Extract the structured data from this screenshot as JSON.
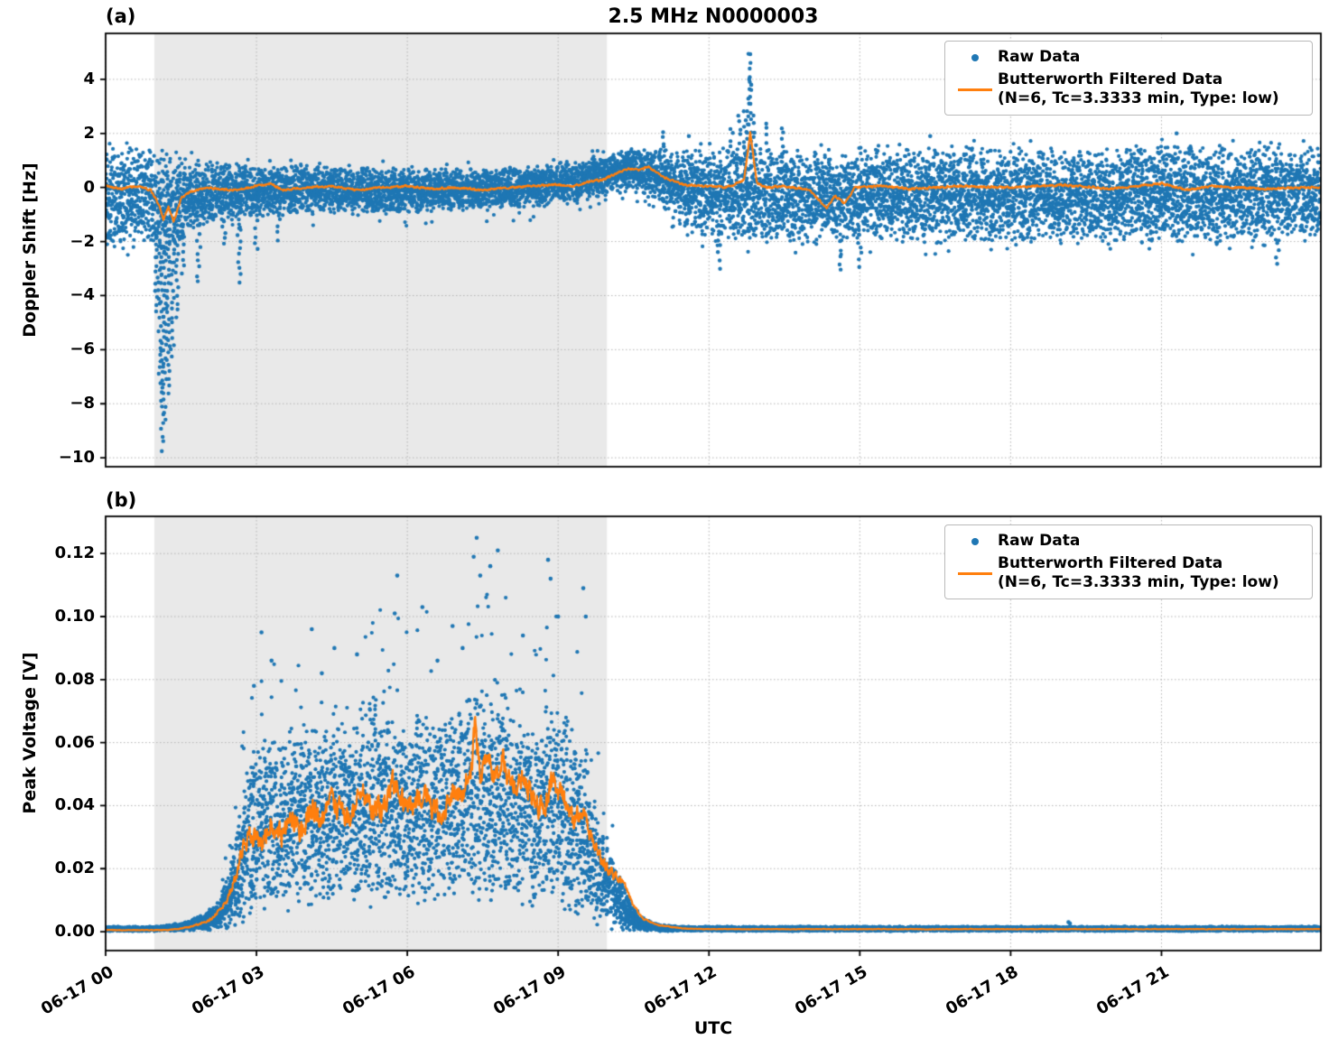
{
  "title": "2.5 MHz N0000003",
  "xlabel": "UTC",
  "legend": {
    "raw_label": "Raw Data",
    "filtered_label_line1": "Butterworth Filtered Data",
    "filtered_label_line2": "(N=6, Tc=3.3333 min, Type: low)"
  },
  "colors": {
    "raw": "#1f77b4",
    "filtered": "#ff7f0e",
    "shading": "#e9e9e9",
    "grid": "#b5b5b5",
    "spine": "#000000",
    "legend_edge": "#b9b9b9"
  },
  "chart_data": [
    {
      "id": "a",
      "panel_label": "(a)",
      "type": "scatter",
      "title": "2.5 MHz N0000003",
      "xlabel": "",
      "ylabel": "Doppler Shift [Hz]",
      "legend_entries": [
        "Raw Data",
        "Butterworth Filtered Data (N=6, Tc=3.3333 min, Type: low)"
      ],
      "legend_position": "upper right",
      "grid": true,
      "xlim_hours": [
        0,
        24.17
      ],
      "ylim": [
        -10.33,
        5.7
      ],
      "shaded_hours": [
        0.97,
        9.97
      ],
      "xticks": [
        {
          "hour": 0,
          "label": "06-17 00"
        },
        {
          "hour": 3,
          "label": "06-17 03"
        },
        {
          "hour": 6,
          "label": "06-17 06"
        },
        {
          "hour": 9,
          "label": "06-17 09"
        },
        {
          "hour": 12,
          "label": "06-17 12"
        },
        {
          "hour": 15,
          "label": "06-17 15"
        },
        {
          "hour": 18,
          "label": "06-17 18"
        },
        {
          "hour": 21,
          "label": "06-17 21"
        }
      ],
      "show_x_tick_labels": false,
      "yticks": [
        {
          "value": 4,
          "label": "4"
        },
        {
          "value": 2,
          "label": "2"
        },
        {
          "value": 0,
          "label": "0"
        },
        {
          "value": -2,
          "label": "−2"
        },
        {
          "value": -4,
          "label": "−4"
        },
        {
          "value": -6,
          "label": "−6"
        },
        {
          "value": -8,
          "label": "−8"
        },
        {
          "value": -10,
          "label": "−10"
        }
      ],
      "raw_band_envelope": [
        [
          0,
          1.7,
          -2.3
        ],
        [
          0.4,
          1.6,
          -2.1
        ],
        [
          0.8,
          1.5,
          -1.9
        ],
        [
          1.0,
          1.3,
          -2.3
        ],
        [
          1.2,
          1.2,
          -2.6
        ],
        [
          1.4,
          1.1,
          -2.2
        ],
        [
          1.6,
          1.0,
          -1.7
        ],
        [
          1.9,
          0.9,
          -1.4
        ],
        [
          2.2,
          0.85,
          -1.2
        ],
        [
          2.6,
          0.8,
          -1.15
        ],
        [
          3.0,
          0.75,
          -1.05
        ],
        [
          3.5,
          0.8,
          -1.0
        ],
        [
          4.0,
          0.85,
          -1.0
        ],
        [
          4.5,
          0.75,
          -0.95
        ],
        [
          5.0,
          0.7,
          -0.9
        ],
        [
          5.5,
          0.75,
          -0.95
        ],
        [
          6.0,
          0.7,
          -0.9
        ],
        [
          6.5,
          0.65,
          -0.85
        ],
        [
          7.0,
          0.7,
          -0.8
        ],
        [
          7.5,
          0.65,
          -0.8
        ],
        [
          8.0,
          0.7,
          -0.75
        ],
        [
          8.5,
          0.75,
          -0.7
        ],
        [
          9.0,
          0.85,
          -0.6
        ],
        [
          9.4,
          0.95,
          -0.5
        ],
        [
          9.7,
          1.05,
          -0.35
        ],
        [
          10.0,
          1.2,
          -0.25
        ],
        [
          10.3,
          1.45,
          -0.1
        ],
        [
          10.6,
          1.55,
          -0.15
        ],
        [
          10.9,
          1.45,
          -0.4
        ],
        [
          11.2,
          1.3,
          -0.9
        ],
        [
          11.5,
          1.25,
          -1.4
        ],
        [
          11.9,
          1.3,
          -1.8
        ],
        [
          12.4,
          1.35,
          -1.9
        ],
        [
          13.0,
          1.4,
          -1.95
        ],
        [
          14.0,
          1.35,
          -2.0
        ],
        [
          15.0,
          1.3,
          -1.9
        ],
        [
          16.0,
          1.35,
          -1.95
        ],
        [
          17.0,
          1.4,
          -1.9
        ],
        [
          18.0,
          1.35,
          -2.0
        ],
        [
          19.0,
          1.4,
          -1.9
        ],
        [
          20.0,
          1.35,
          -1.95
        ],
        [
          21.0,
          1.45,
          -1.9
        ],
        [
          22.0,
          1.4,
          -2.0
        ],
        [
          23.0,
          1.45,
          -1.95
        ],
        [
          24.17,
          1.5,
          -1.9
        ]
      ],
      "raw_outlier_streaks": [
        [
          1.02,
          -1.6,
          -4.6
        ],
        [
          1.08,
          -2.0,
          -7.2
        ],
        [
          1.13,
          -2.2,
          -9.7
        ],
        [
          1.18,
          -2.0,
          -8.6
        ],
        [
          1.25,
          -1.8,
          -7.6
        ],
        [
          1.33,
          -2.0,
          -6.3
        ],
        [
          1.42,
          -1.6,
          -4.8
        ],
        [
          1.55,
          -1.4,
          -3.2
        ],
        [
          1.85,
          -1.4,
          -3.5
        ],
        [
          2.35,
          -1.2,
          -2.1
        ],
        [
          2.65,
          -1.2,
          -3.5
        ],
        [
          3.0,
          -1.0,
          -2.3
        ],
        [
          3.45,
          -1.0,
          -1.9
        ],
        [
          11.1,
          1.5,
          2.0
        ],
        [
          12.2,
          -1.9,
          -3.0
        ],
        [
          12.45,
          1.3,
          2.2
        ],
        [
          12.6,
          1.4,
          2.7
        ],
        [
          12.72,
          1.2,
          2.8
        ],
        [
          12.78,
          1.3,
          3.6
        ],
        [
          12.82,
          1.5,
          4.93
        ],
        [
          12.9,
          1.3,
          2.6
        ],
        [
          13.15,
          1.4,
          2.4
        ],
        [
          13.45,
          1.3,
          2.2
        ],
        [
          14.6,
          -2.0,
          -3.1
        ],
        [
          15.0,
          -2.0,
          -2.9
        ],
        [
          23.3,
          -2.0,
          -2.8
        ]
      ],
      "raw_outlier_points": [
        [
          12.82,
          4.93
        ],
        [
          12.8,
          4.0
        ],
        [
          12.84,
          3.8
        ],
        [
          11.6,
          1.9
        ],
        [
          16.4,
          1.9
        ],
        [
          21.3,
          2.0
        ]
      ],
      "filtered_line": [
        [
          0,
          0.05
        ],
        [
          0.3,
          -0.05
        ],
        [
          0.6,
          0.05
        ],
        [
          0.9,
          -0.1
        ],
        [
          1.05,
          -0.6
        ],
        [
          1.15,
          -1.2
        ],
        [
          1.25,
          -0.7
        ],
        [
          1.35,
          -1.3
        ],
        [
          1.5,
          -0.4
        ],
        [
          1.7,
          -0.15
        ],
        [
          2,
          0
        ],
        [
          2.5,
          -0.1
        ],
        [
          3,
          0.05
        ],
        [
          3.3,
          0.15
        ],
        [
          3.5,
          -0.1
        ],
        [
          4,
          0
        ],
        [
          4.5,
          0.05
        ],
        [
          5,
          -0.1
        ],
        [
          5.5,
          0
        ],
        [
          6,
          0.05
        ],
        [
          6.5,
          -0.05
        ],
        [
          7,
          0
        ],
        [
          7.5,
          -0.1
        ],
        [
          8,
          0
        ],
        [
          8.5,
          0.05
        ],
        [
          9,
          0.1
        ],
        [
          9.3,
          0.05
        ],
        [
          9.6,
          0.2
        ],
        [
          9.9,
          0.3
        ],
        [
          10.2,
          0.55
        ],
        [
          10.4,
          0.7
        ],
        [
          10.6,
          0.65
        ],
        [
          10.8,
          0.75
        ],
        [
          11.0,
          0.5
        ],
        [
          11.2,
          0.3
        ],
        [
          11.5,
          0.1
        ],
        [
          12,
          0.05
        ],
        [
          12.3,
          0
        ],
        [
          12.5,
          0.1
        ],
        [
          12.7,
          0.3
        ],
        [
          12.82,
          2.05
        ],
        [
          12.95,
          0.2
        ],
        [
          13.1,
          0
        ],
        [
          13.5,
          0.05
        ],
        [
          14,
          -0.1
        ],
        [
          14.35,
          -0.75
        ],
        [
          14.5,
          -0.3
        ],
        [
          14.7,
          -0.6
        ],
        [
          14.9,
          0
        ],
        [
          15.5,
          0.05
        ],
        [
          16,
          -0.05
        ],
        [
          17,
          0.05
        ],
        [
          18,
          0
        ],
        [
          19,
          0.1
        ],
        [
          20,
          -0.05
        ],
        [
          21,
          0.15
        ],
        [
          21.5,
          -0.1
        ],
        [
          22,
          0.05
        ],
        [
          23,
          -0.05
        ],
        [
          24.17,
          0
        ]
      ],
      "line_noise_amp": 0.06
    },
    {
      "id": "b",
      "panel_label": "(b)",
      "type": "scatter",
      "xlabel": "UTC",
      "ylabel": "Peak Voltage [V]",
      "legend_entries": [
        "Raw Data",
        "Butterworth Filtered Data (N=6, Tc=3.3333 min, Type: low)"
      ],
      "legend_position": "upper right",
      "grid": true,
      "xlim_hours": [
        0,
        24.17
      ],
      "ylim": [
        -0.006,
        0.1318
      ],
      "shaded_hours": [
        0.97,
        9.97
      ],
      "xticks": [
        {
          "hour": 0,
          "label": "06-17 00"
        },
        {
          "hour": 3,
          "label": "06-17 03"
        },
        {
          "hour": 6,
          "label": "06-17 06"
        },
        {
          "hour": 9,
          "label": "06-17 09"
        },
        {
          "hour": 12,
          "label": "06-17 12"
        },
        {
          "hour": 15,
          "label": "06-17 15"
        },
        {
          "hour": 18,
          "label": "06-17 18"
        },
        {
          "hour": 21,
          "label": "06-17 21"
        }
      ],
      "show_x_tick_labels": true,
      "yticks": [
        {
          "value": 0.12,
          "label": "0.12"
        },
        {
          "value": 0.1,
          "label": "0.10"
        },
        {
          "value": 0.08,
          "label": "0.08"
        },
        {
          "value": 0.06,
          "label": "0.06"
        },
        {
          "value": 0.04,
          "label": "0.04"
        },
        {
          "value": 0.02,
          "label": "0.02"
        },
        {
          "value": 0.0,
          "label": "0.00"
        }
      ],
      "raw_band_envelope": [
        [
          0,
          0.0016,
          0.0002
        ],
        [
          0.8,
          0.0016,
          0.0002
        ],
        [
          1.2,
          0.002,
          0.0002
        ],
        [
          1.6,
          0.003,
          0.0003
        ],
        [
          1.9,
          0.005,
          0.0004
        ],
        [
          2.2,
          0.009,
          0.0006
        ],
        [
          2.45,
          0.018,
          0.001
        ],
        [
          2.7,
          0.042,
          0.002
        ],
        [
          2.9,
          0.058,
          0.004
        ],
        [
          3.1,
          0.063,
          0.006
        ],
        [
          3.4,
          0.058,
          0.008
        ],
        [
          3.7,
          0.064,
          0.009
        ],
        [
          4.0,
          0.067,
          0.009
        ],
        [
          4.3,
          0.062,
          0.01
        ],
        [
          4.6,
          0.07,
          0.01
        ],
        [
          4.9,
          0.065,
          0.01
        ],
        [
          5.2,
          0.072,
          0.011
        ],
        [
          5.5,
          0.076,
          0.011
        ],
        [
          5.8,
          0.068,
          0.011
        ],
        [
          6.1,
          0.065,
          0.011
        ],
        [
          6.4,
          0.07,
          0.012
        ],
        [
          6.7,
          0.065,
          0.012
        ],
        [
          7.0,
          0.068,
          0.012
        ],
        [
          7.3,
          0.078,
          0.012
        ],
        [
          7.6,
          0.072,
          0.012
        ],
        [
          7.9,
          0.072,
          0.012
        ],
        [
          8.2,
          0.068,
          0.011
        ],
        [
          8.5,
          0.065,
          0.01
        ],
        [
          8.8,
          0.07,
          0.009
        ],
        [
          9.1,
          0.065,
          0.008
        ],
        [
          9.4,
          0.06,
          0.006
        ],
        [
          9.6,
          0.05,
          0.005
        ],
        [
          9.8,
          0.038,
          0.003
        ],
        [
          10.0,
          0.028,
          0.002
        ],
        [
          10.2,
          0.018,
          0.0012
        ],
        [
          10.45,
          0.009,
          0.0008
        ],
        [
          10.7,
          0.004,
          0.0004
        ],
        [
          11.0,
          0.0022,
          0.0002
        ],
        [
          11.5,
          0.0016,
          0.0002
        ],
        [
          24.17,
          0.0016,
          0.0002
        ]
      ],
      "raw_outlier_streaks": [],
      "raw_outlier_points": [
        [
          7.38,
          0.125
        ],
        [
          7.32,
          0.119
        ],
        [
          7.45,
          0.113
        ],
        [
          7.8,
          0.121
        ],
        [
          7.65,
          0.116
        ],
        [
          8.8,
          0.118
        ],
        [
          8.85,
          0.112
        ],
        [
          5.8,
          0.113
        ],
        [
          5.75,
          0.101
        ],
        [
          3.1,
          0.095
        ],
        [
          3.3,
          0.086
        ],
        [
          4.1,
          0.096
        ],
        [
          4.55,
          0.09
        ],
        [
          6.3,
          0.103
        ],
        [
          6.9,
          0.097
        ],
        [
          9.0,
          0.1
        ],
        [
          9.5,
          0.109
        ],
        [
          9.55,
          0.1
        ],
        [
          2.95,
          0.078
        ],
        [
          8.3,
          0.094
        ],
        [
          5.0,
          0.088
        ],
        [
          4.3,
          0.082
        ],
        [
          7.1,
          0.09
        ],
        [
          6.6,
          0.086
        ],
        [
          19.15,
          0.003
        ],
        [
          19.18,
          0.0026
        ]
      ],
      "filtered_line": [
        [
          0,
          0.0005
        ],
        [
          1.2,
          0.0005
        ],
        [
          1.5,
          0.001
        ],
        [
          1.8,
          0.002
        ],
        [
          2.1,
          0.004
        ],
        [
          2.4,
          0.009
        ],
        [
          2.6,
          0.018
        ],
        [
          2.75,
          0.028
        ],
        [
          2.9,
          0.032
        ],
        [
          3.1,
          0.028
        ],
        [
          3.3,
          0.035
        ],
        [
          3.5,
          0.03
        ],
        [
          3.7,
          0.036
        ],
        [
          3.9,
          0.032
        ],
        [
          4.1,
          0.04
        ],
        [
          4.3,
          0.036
        ],
        [
          4.5,
          0.042
        ],
        [
          4.7,
          0.038
        ],
        [
          4.9,
          0.035
        ],
        [
          5.1,
          0.045
        ],
        [
          5.3,
          0.04
        ],
        [
          5.5,
          0.038
        ],
        [
          5.7,
          0.048
        ],
        [
          5.9,
          0.042
        ],
        [
          6.1,
          0.038
        ],
        [
          6.3,
          0.044
        ],
        [
          6.5,
          0.04
        ],
        [
          6.7,
          0.035
        ],
        [
          6.9,
          0.045
        ],
        [
          7.1,
          0.042
        ],
        [
          7.3,
          0.055
        ],
        [
          7.35,
          0.066
        ],
        [
          7.45,
          0.05
        ],
        [
          7.6,
          0.058
        ],
        [
          7.7,
          0.048
        ],
        [
          7.9,
          0.055
        ],
        [
          8.1,
          0.045
        ],
        [
          8.3,
          0.05
        ],
        [
          8.5,
          0.042
        ],
        [
          8.7,
          0.038
        ],
        [
          8.9,
          0.048
        ],
        [
          9.1,
          0.043
        ],
        [
          9.3,
          0.035
        ],
        [
          9.5,
          0.038
        ],
        [
          9.7,
          0.028
        ],
        [
          9.9,
          0.022
        ],
        [
          10.1,
          0.018
        ],
        [
          10.3,
          0.016
        ],
        [
          10.5,
          0.008
        ],
        [
          10.7,
          0.004
        ],
        [
          11.0,
          0.002
        ],
        [
          11.5,
          0.001
        ],
        [
          12,
          0.0008
        ],
        [
          24.17,
          0.0008
        ]
      ],
      "line_noise_amp": "scaled"
    }
  ]
}
